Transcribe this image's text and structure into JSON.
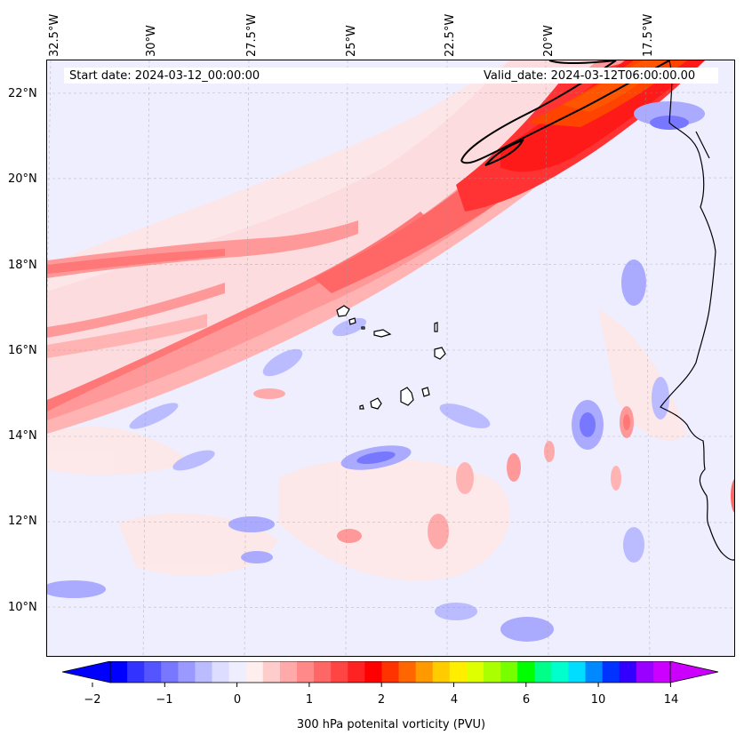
{
  "header": {
    "start_date": "Start date: 2024-03-12_00:00:00",
    "valid_date": "Valid_date: 2024-03-12T06:00:00.00"
  },
  "axes": {
    "longitude_labels": [
      "32.5°W",
      "30°W",
      "27.5°W",
      "25°W",
      "22.5°W",
      "20°W",
      "17.5°W"
    ],
    "latitude_labels": [
      "22°N",
      "20°N",
      "18°N",
      "16°N",
      "14°N",
      "12°N",
      "10°N"
    ]
  },
  "colorbar": {
    "title": "300 hPa potenital vorticity (PVU)",
    "tick_labels": [
      "−2",
      "−1",
      "0",
      "1",
      "2",
      "4",
      "6",
      "10",
      "14"
    ],
    "colors": [
      "#0000ff",
      "#3333ff",
      "#5555ff",
      "#7777ff",
      "#9999ff",
      "#bbbbff",
      "#ddddff",
      "#eeeeff",
      "#ffeeee",
      "#ffcccc",
      "#ffaaaa",
      "#ff8888",
      "#ff6666",
      "#ff4444",
      "#ff2222",
      "#ff0000",
      "#ff3300",
      "#ff6600",
      "#ff9900",
      "#ffcc00",
      "#ffee00",
      "#ddff00",
      "#aaff00",
      "#77ff00",
      "#00ff00",
      "#00ff88",
      "#00ffcc",
      "#00ddff",
      "#0088ff",
      "#0033ff",
      "#3300ff",
      "#9900ff",
      "#cc00ff"
    ]
  }
}
